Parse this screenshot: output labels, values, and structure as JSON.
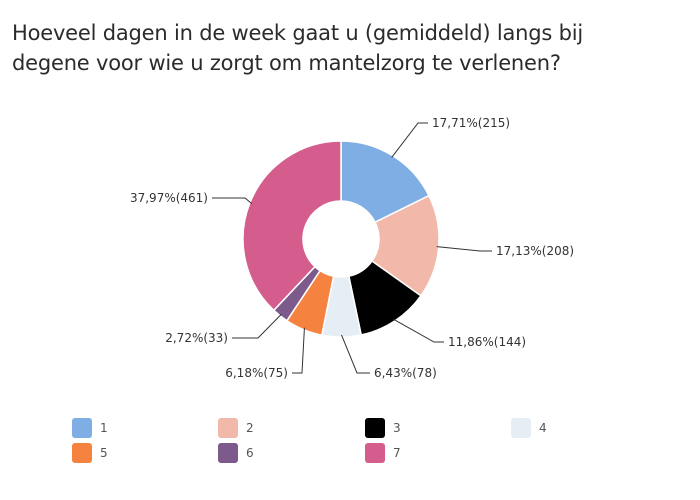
{
  "title_lines": [
    "Hoeveel dagen in de week gaat u (gemiddeld) langs bij",
    "degene voor wie u zorgt om mantelzorg te verlenen?"
  ],
  "chart_data": {
    "type": "pie",
    "title": "Hoeveel dagen in de week gaat u (gemiddeld) langs bij degene voor wie u zorgt om mantelzorg te verlenen?",
    "donut": true,
    "legend_position": "bottom",
    "slices": [
      {
        "category": "1",
        "percent": 17.71,
        "count": 215,
        "label": "17,71%(215)",
        "color": "#7eaee3"
      },
      {
        "category": "2",
        "percent": 17.13,
        "count": 208,
        "label": "17,13%(208)",
        "color": "#f2b8aa"
      },
      {
        "category": "3",
        "percent": 11.86,
        "count": 144,
        "label": "11,86%(144)",
        "color": "#000000"
      },
      {
        "category": "4",
        "percent": 6.43,
        "count": 78,
        "label": "6,43%(78)",
        "color": "#e5edf5"
      },
      {
        "category": "5",
        "percent": 6.18,
        "count": 75,
        "label": "6,18%(75)",
        "color": "#f5823f"
      },
      {
        "category": "6",
        "percent": 2.72,
        "count": 33,
        "label": "2,72%(33)",
        "color": "#7c5a8c"
      },
      {
        "category": "7",
        "percent": 37.97,
        "count": 461,
        "label": "37,97%(461)",
        "color": "#d45d8e"
      }
    ]
  }
}
